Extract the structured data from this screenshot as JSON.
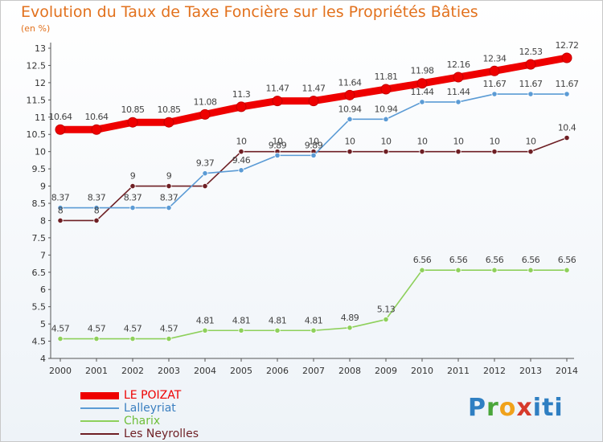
{
  "chart_data": {
    "type": "line",
    "title": "Evolution du Taux de Taxe Foncière sur les Propriétés Bâties",
    "unit_label": "(en %)",
    "categories": [
      "2000",
      "2001",
      "2002",
      "2003",
      "2004",
      "2005",
      "2006",
      "2007",
      "2008",
      "2009",
      "2010",
      "2011",
      "2012",
      "2013",
      "2014"
    ],
    "ylim": [
      4,
      13
    ],
    "yticks": [
      "4",
      "4.5",
      "5",
      "5.5",
      "6",
      "6.5",
      "7",
      "7.5",
      "8",
      "8.5",
      "9",
      "9.5",
      "10",
      "10.5",
      "11",
      "11.5",
      "12",
      "12.5",
      "13"
    ],
    "grid": false,
    "legend_position": "bottom-left",
    "series": [
      {
        "name": "LE POIZAT",
        "color": "#ee0000",
        "values": [
          10.64,
          10.64,
          10.85,
          10.85,
          11.08,
          11.3,
          11.47,
          11.47,
          11.64,
          11.81,
          11.98,
          12.16,
          12.34,
          12.53,
          12.72
        ],
        "labels": [
          "10.64",
          "10.64",
          "10.85",
          "10.85",
          "11.08",
          "11.3",
          "11.47",
          "11.47",
          "11.64",
          "11.81",
          "11.98",
          "12.16",
          "12.34",
          "12.53",
          "12.72"
        ]
      },
      {
        "name": "Lalleyriat",
        "color": "#5b9bd5",
        "values": [
          8.37,
          8.37,
          8.37,
          8.37,
          9.37,
          9.46,
          9.89,
          9.89,
          10.94,
          10.94,
          11.44,
          11.44,
          11.67,
          11.67,
          11.67
        ],
        "labels": [
          "8.37",
          "8.37",
          "8.37",
          "8.37",
          "9.37",
          "9.46",
          "9.89",
          "9.89",
          "10.94",
          "10.94",
          "11.44",
          "11.44",
          "11.67",
          "11.67",
          "11.67"
        ]
      },
      {
        "name": "Charix",
        "color": "#8ed05b",
        "values": [
          4.57,
          4.57,
          4.57,
          4.57,
          4.81,
          4.81,
          4.81,
          4.81,
          4.89,
          5.13,
          6.56,
          6.56,
          6.56,
          6.56,
          6.56
        ],
        "labels": [
          "4.57",
          "4.57",
          "4.57",
          "4.57",
          "4.81",
          "4.81",
          "4.81",
          "4.81",
          "4.89",
          "5.13",
          "6.56",
          "6.56",
          "6.56",
          "6.56",
          "6.56"
        ]
      },
      {
        "name": "Les Neyrolles",
        "color": "#6e1f24",
        "values": [
          8,
          8,
          9,
          9,
          9,
          10,
          10,
          10,
          10,
          10,
          10,
          10,
          10,
          10,
          10.4
        ],
        "labels": [
          "8",
          "8",
          "9",
          "9",
          "",
          "10",
          "10",
          "10",
          "10",
          "10",
          "10",
          "10",
          "10",
          "10",
          "10.4"
        ]
      }
    ]
  },
  "brand": {
    "p": "P",
    "r": "r",
    "o": "o",
    "x": "x",
    "i": "iti"
  }
}
